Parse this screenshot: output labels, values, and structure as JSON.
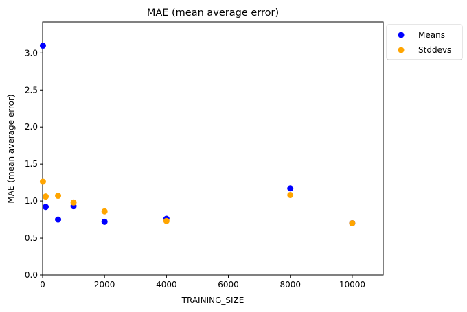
{
  "chart_data": {
    "type": "scatter",
    "title": "MAE (mean average error)",
    "xlabel": "TRAINING_SIZE",
    "ylabel": "MAE (mean average error)",
    "xlim": [
      0,
      11000
    ],
    "ylim": [
      0.0,
      3.42
    ],
    "xticks": [
      0,
      2000,
      4000,
      6000,
      8000,
      10000
    ],
    "xtick_labels": [
      "0",
      "2000",
      "4000",
      "6000",
      "8000",
      "10000"
    ],
    "yticks": [
      0.0,
      0.5,
      1.0,
      1.5,
      2.0,
      2.5,
      3.0
    ],
    "ytick_labels": [
      "0.0",
      "0.5",
      "1.0",
      "1.5",
      "2.0",
      "2.5",
      "3.0"
    ],
    "grid": false,
    "legend_position": "outside-top-right",
    "series": [
      {
        "name": "Means",
        "color": "#0000ff",
        "points": [
          {
            "x": 10,
            "y": 3.1
          },
          {
            "x": 100,
            "y": 0.92
          },
          {
            "x": 500,
            "y": 0.75
          },
          {
            "x": 1000,
            "y": 0.93
          },
          {
            "x": 2000,
            "y": 0.72
          },
          {
            "x": 4000,
            "y": 0.76
          },
          {
            "x": 8000,
            "y": 1.17
          },
          {
            "x": 10000,
            "y": 0.7
          }
        ]
      },
      {
        "name": "Stddevs",
        "color": "#ffa500",
        "points": [
          {
            "x": 10,
            "y": 1.26
          },
          {
            "x": 100,
            "y": 1.06
          },
          {
            "x": 500,
            "y": 1.07
          },
          {
            "x": 1000,
            "y": 0.98
          },
          {
            "x": 2000,
            "y": 0.86
          },
          {
            "x": 4000,
            "y": 0.73
          },
          {
            "x": 8000,
            "y": 1.08
          },
          {
            "x": 10000,
            "y": 0.7
          }
        ]
      }
    ]
  }
}
